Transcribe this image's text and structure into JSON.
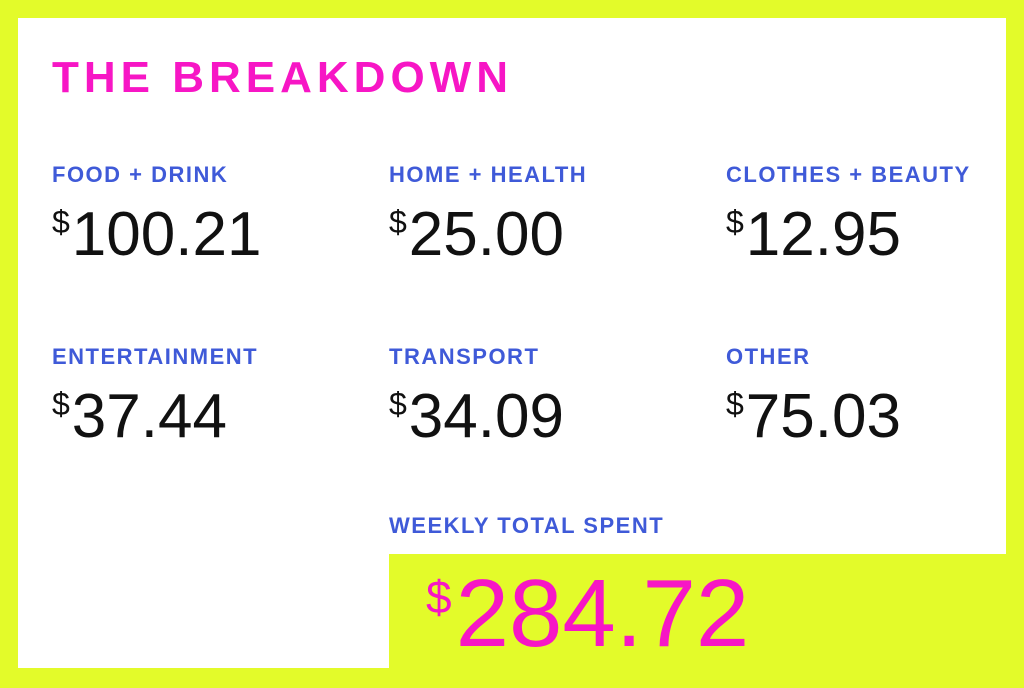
{
  "title": "THE BREAKDOWN",
  "currency_symbol": "$",
  "categories": [
    {
      "label": "FOOD + DRINK",
      "amount": "100.21"
    },
    {
      "label": "HOME + HEALTH",
      "amount": "25.00"
    },
    {
      "label": "CLOTHES + BEAUTY",
      "amount": "12.95"
    },
    {
      "label": "ENTERTAINMENT",
      "amount": "37.44"
    },
    {
      "label": "TRANSPORT",
      "amount": "34.09"
    },
    {
      "label": "OTHER",
      "amount": "75.03"
    }
  ],
  "total": {
    "label": "WEEKLY TOTAL SPENT",
    "amount": "284.72"
  },
  "colors": {
    "background": "#e3fb2a",
    "panel": "#ffffff",
    "title": "#f716c5",
    "label": "#3f5ad8",
    "amount": "#111111",
    "total": "#f716c5"
  }
}
